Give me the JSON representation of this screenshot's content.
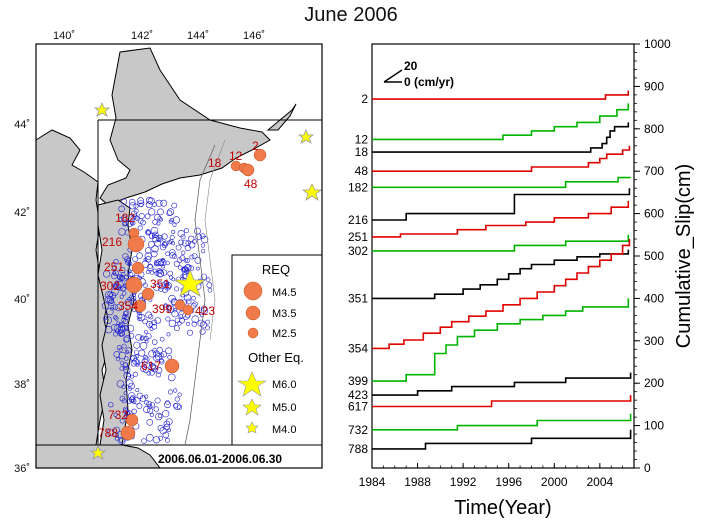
{
  "page": {
    "title": "June 2006"
  },
  "map": {
    "lon_ticks": [
      "140˚",
      "142˚",
      "144˚",
      "146˚"
    ],
    "lat_ticks": [
      "36˚",
      "38˚",
      "40˚",
      "42˚",
      "44˚"
    ],
    "period_label": "2006.06.01-2006.06.30",
    "legend": {
      "title": "REQ",
      "req_items": [
        "M4.5",
        "M3.5",
        "M2.5"
      ],
      "other_title": "Other Eq.",
      "other_items": [
        "M6.0",
        "M5.0",
        "M4.0"
      ]
    },
    "repeater_labels": [
      "2",
      "12",
      "18",
      "48",
      "182",
      "216",
      "251",
      "302",
      "351",
      "354",
      "399",
      "423",
      "617",
      "732",
      "788"
    ],
    "colors": {
      "land": "#c8c8c8",
      "sea": "#ffffff",
      "req": "#f07a4a",
      "other": "#ffff00",
      "small": "#2020d0"
    }
  },
  "chart_data": {
    "type": "line",
    "title": "June 2006",
    "xlabel": "Time(Year)",
    "ylabel": "Cumulative_Slip(cm)",
    "xlim": [
      1984,
      2007
    ],
    "ylim": [
      0,
      1000
    ],
    "x_ticks": [
      "1984",
      "1988",
      "1992",
      "1996",
      "2000",
      "2004"
    ],
    "y_ticks": [
      "0",
      "100",
      "200",
      "300",
      "400",
      "500",
      "600",
      "700",
      "800",
      "900",
      "1000"
    ],
    "scale_label": {
      "top": "20",
      "bottom": "0 (cm/yr)"
    },
    "series": [
      {
        "name": "2",
        "color": "#e00000",
        "points": [
          [
            1984,
            870
          ],
          [
            2004.5,
            870
          ],
          [
            2004.5,
            880
          ],
          [
            2006.5,
            880
          ],
          [
            2006.5,
            890
          ]
        ]
      },
      {
        "name": "12",
        "color": "#00b400",
        "points": [
          [
            1984,
            775
          ],
          [
            1995.5,
            775
          ],
          [
            1995.5,
            785
          ],
          [
            1998,
            785
          ],
          [
            1998,
            795
          ],
          [
            2000,
            795
          ],
          [
            2000,
            805
          ],
          [
            2002,
            805
          ],
          [
            2002,
            815
          ],
          [
            2004,
            815
          ],
          [
            2004,
            830
          ],
          [
            2005.5,
            830
          ],
          [
            2005.5,
            845
          ],
          [
            2006.5,
            845
          ],
          [
            2006.5,
            860
          ]
        ]
      },
      {
        "name": "18",
        "color": "#000000",
        "points": [
          [
            1984,
            745
          ],
          [
            2003.2,
            745
          ],
          [
            2003.2,
            755
          ],
          [
            2004.2,
            755
          ],
          [
            2004.2,
            765
          ],
          [
            2004.6,
            765
          ],
          [
            2004.6,
            780
          ],
          [
            2004.9,
            780
          ],
          [
            2004.9,
            795
          ],
          [
            2005.3,
            795
          ],
          [
            2005.3,
            805
          ],
          [
            2006.5,
            805
          ],
          [
            2006.5,
            815
          ]
        ]
      },
      {
        "name": "48",
        "color": "#e00000",
        "points": [
          [
            1984,
            700
          ],
          [
            1998,
            700
          ],
          [
            1998,
            710
          ],
          [
            2003,
            710
          ],
          [
            2003,
            720
          ],
          [
            2004,
            720
          ],
          [
            2004,
            730
          ],
          [
            2004.6,
            730
          ],
          [
            2004.6,
            740
          ],
          [
            2006,
            740
          ],
          [
            2006,
            750
          ],
          [
            2006.6,
            750
          ],
          [
            2006.6,
            760
          ]
        ]
      },
      {
        "name": "182",
        "color": "#00b400",
        "points": [
          [
            1984,
            662
          ],
          [
            2001,
            662
          ],
          [
            2001,
            675
          ],
          [
            2005.6,
            675
          ],
          [
            2005.6,
            685
          ],
          [
            2006.7,
            685
          ]
        ]
      },
      {
        "name": "216",
        "color": "#000000",
        "points": [
          [
            1984,
            585
          ],
          [
            1987,
            585
          ],
          [
            1987,
            600
          ],
          [
            1996.5,
            600
          ],
          [
            1996.5,
            645
          ],
          [
            2006.6,
            645
          ],
          [
            2006.6,
            660
          ]
        ]
      },
      {
        "name": "251",
        "color": "#e00000",
        "points": [
          [
            1984,
            545
          ],
          [
            1986.5,
            545
          ],
          [
            1986.5,
            552
          ],
          [
            1991.5,
            552
          ],
          [
            1991.5,
            562
          ],
          [
            1994,
            562
          ],
          [
            1994,
            572
          ],
          [
            1997.5,
            572
          ],
          [
            1997.5,
            580
          ],
          [
            2000,
            580
          ],
          [
            2000,
            590
          ],
          [
            2003,
            590
          ],
          [
            2003,
            600
          ],
          [
            2005,
            600
          ],
          [
            2005,
            615
          ],
          [
            2006.5,
            615
          ],
          [
            2006.5,
            630
          ]
        ]
      },
      {
        "name": "302",
        "color": "#00b400",
        "points": [
          [
            1984,
            512
          ],
          [
            1996.5,
            512
          ],
          [
            1996.5,
            525
          ],
          [
            2001,
            525
          ],
          [
            2001,
            535
          ],
          [
            2006.5,
            535
          ],
          [
            2006.5,
            550
          ]
        ]
      },
      {
        "name": "351",
        "color": "#000000",
        "points": [
          [
            1984,
            400
          ],
          [
            1989.5,
            400
          ],
          [
            1989.5,
            410
          ],
          [
            1992,
            410
          ],
          [
            1992,
            422
          ],
          [
            1993.5,
            422
          ],
          [
            1993.5,
            432
          ],
          [
            1995,
            432
          ],
          [
            1995,
            445
          ],
          [
            1996,
            445
          ],
          [
            1996,
            458
          ],
          [
            1997,
            458
          ],
          [
            1997,
            470
          ],
          [
            1998,
            470
          ],
          [
            1998,
            480
          ],
          [
            2000,
            480
          ],
          [
            2000,
            490
          ],
          [
            2002,
            490
          ],
          [
            2002,
            498
          ],
          [
            2004,
            498
          ],
          [
            2004,
            505
          ],
          [
            2006.5,
            505
          ],
          [
            2006.5,
            515
          ]
        ]
      },
      {
        "name": "354",
        "color": "#e00000",
        "points": [
          [
            1984,
            282
          ],
          [
            1985.5,
            282
          ],
          [
            1985.5,
            292
          ],
          [
            1986.8,
            292
          ],
          [
            1986.8,
            302
          ],
          [
            1988.5,
            302
          ],
          [
            1988.5,
            318
          ],
          [
            1990,
            318
          ],
          [
            1990,
            332
          ],
          [
            1991,
            332
          ],
          [
            1991,
            345
          ],
          [
            1992.5,
            345
          ],
          [
            1992.5,
            358
          ],
          [
            1994,
            358
          ],
          [
            1994,
            370
          ],
          [
            1995.5,
            370
          ],
          [
            1995.5,
            385
          ],
          [
            1997,
            385
          ],
          [
            1997,
            400
          ],
          [
            1998.5,
            400
          ],
          [
            1998.5,
            415
          ],
          [
            2000,
            415
          ],
          [
            2000,
            430
          ],
          [
            2001,
            430
          ],
          [
            2001,
            445
          ],
          [
            2002,
            445
          ],
          [
            2002,
            460
          ],
          [
            2003,
            460
          ],
          [
            2003,
            475
          ],
          [
            2004,
            475
          ],
          [
            2004,
            490
          ],
          [
            2005,
            490
          ],
          [
            2005,
            505
          ],
          [
            2006,
            505
          ],
          [
            2006,
            525
          ],
          [
            2006.6,
            525
          ],
          [
            2006.6,
            540
          ]
        ]
      },
      {
        "name": "399",
        "color": "#00b400",
        "points": [
          [
            1984,
            205
          ],
          [
            1987,
            205
          ],
          [
            1987,
            220
          ],
          [
            1989.5,
            220
          ],
          [
            1989.5,
            270
          ],
          [
            1990.5,
            270
          ],
          [
            1990.5,
            290
          ],
          [
            1991.5,
            290
          ],
          [
            1991.5,
            310
          ],
          [
            1993,
            310
          ],
          [
            1993,
            325
          ],
          [
            1995,
            325
          ],
          [
            1995,
            340
          ],
          [
            1997,
            340
          ],
          [
            1997,
            350
          ],
          [
            1999,
            350
          ],
          [
            1999,
            360
          ],
          [
            2001,
            360
          ],
          [
            2001,
            370
          ],
          [
            2002.5,
            370
          ],
          [
            2002.5,
            380
          ],
          [
            2006.5,
            380
          ],
          [
            2006.5,
            400
          ]
        ]
      },
      {
        "name": "423",
        "color": "#000000",
        "points": [
          [
            1984,
            172
          ],
          [
            1988,
            172
          ],
          [
            1988,
            182
          ],
          [
            1991,
            182
          ],
          [
            1991,
            192
          ],
          [
            1996.5,
            192
          ],
          [
            1996.5,
            202
          ],
          [
            2001,
            202
          ],
          [
            2001,
            212
          ],
          [
            2006.7,
            212
          ],
          [
            2006.7,
            225
          ]
        ]
      },
      {
        "name": "617",
        "color": "#e00000",
        "points": [
          [
            1984,
            145
          ],
          [
            1994.5,
            145
          ],
          [
            1994.5,
            158
          ],
          [
            2006.7,
            158
          ],
          [
            2006.7,
            172
          ]
        ]
      },
      {
        "name": "732",
        "color": "#00b400",
        "points": [
          [
            1984,
            90
          ],
          [
            1991.5,
            90
          ],
          [
            1991.5,
            100
          ],
          [
            1998.5,
            100
          ],
          [
            1998.5,
            112
          ],
          [
            2006.7,
            112
          ],
          [
            2006.7,
            128
          ]
        ]
      },
      {
        "name": "788",
        "color": "#000000",
        "points": [
          [
            1984,
            45
          ],
          [
            1988.7,
            45
          ],
          [
            1988.7,
            58
          ],
          [
            1998,
            58
          ],
          [
            1998,
            70
          ],
          [
            2006.7,
            70
          ],
          [
            2006.7,
            90
          ]
        ]
      }
    ]
  }
}
